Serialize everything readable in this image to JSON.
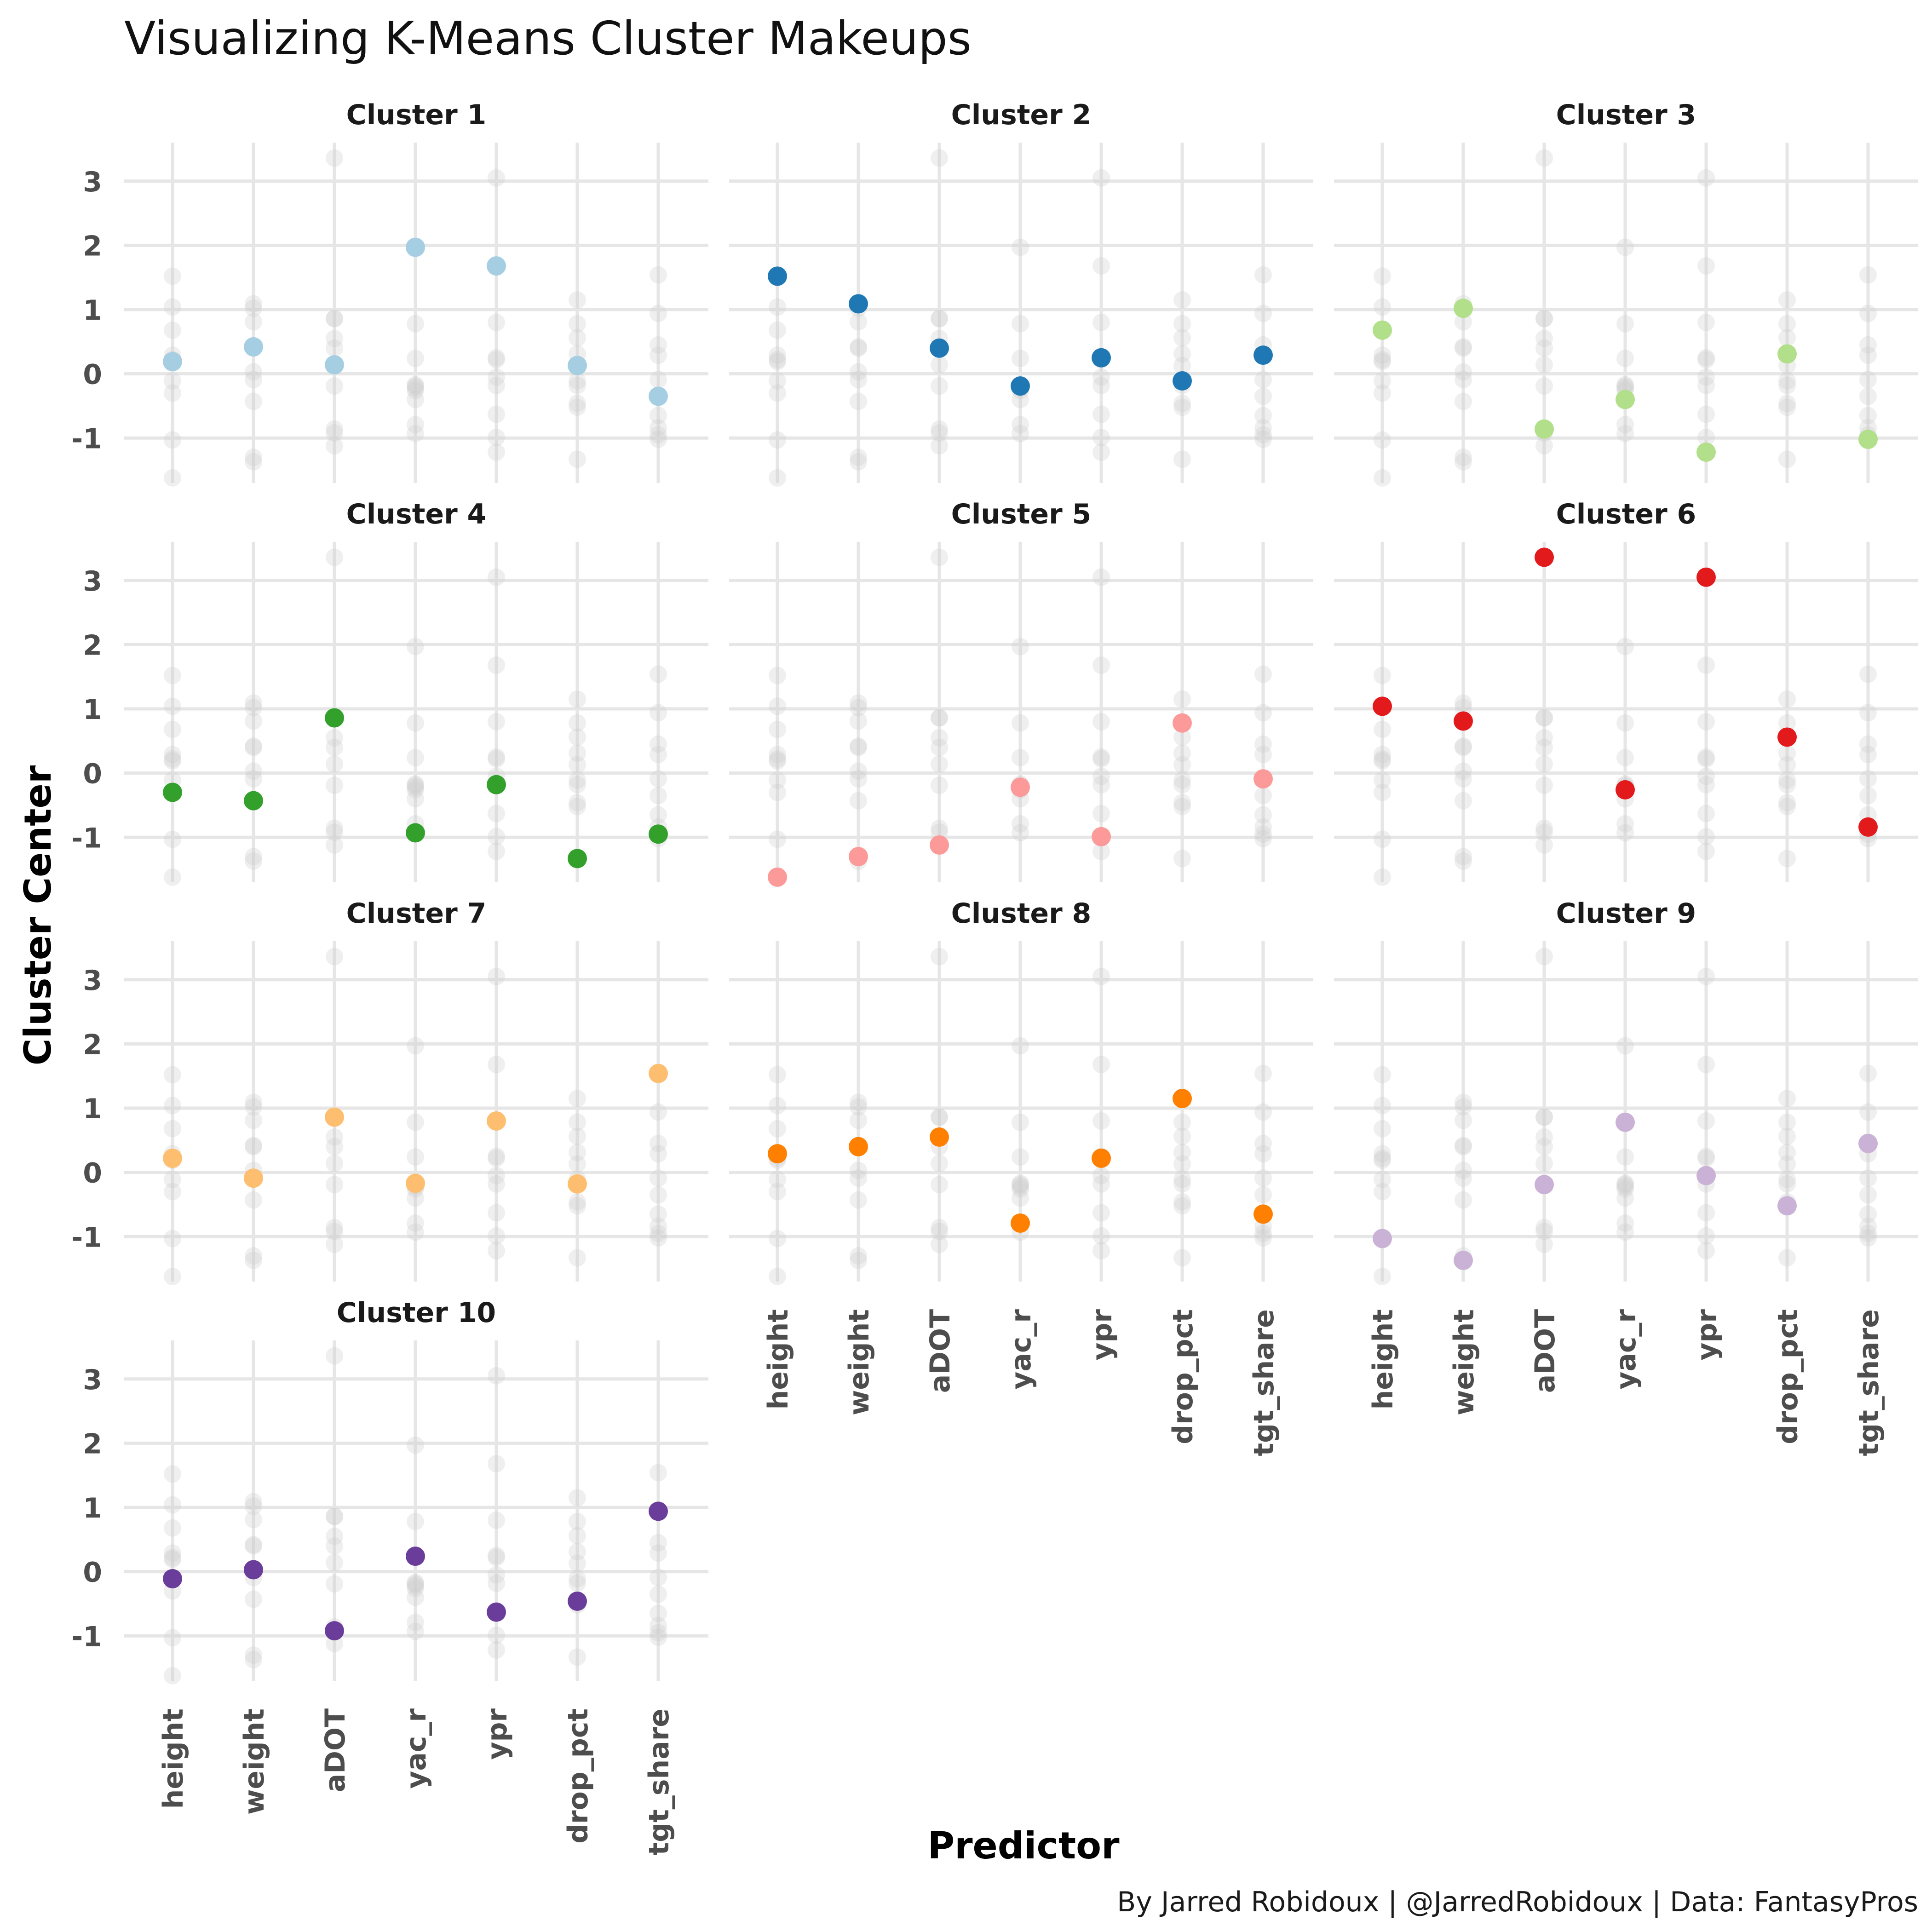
{
  "chart_data": {
    "type": "scatter",
    "title": "Visualizing K-Means Cluster Makeups",
    "xlabel": "Predictor",
    "ylabel": "Cluster Center",
    "caption": "By Jarred Robidoux | @JarredRobidoux | Data: FantasyPros",
    "categories": [
      "height",
      "weight",
      "aDOT",
      "yac_r",
      "ypr",
      "drop_pct",
      "tgt_share"
    ],
    "y_ticks": [
      3,
      2,
      1,
      0,
      -1
    ],
    "y_tick_labels": [
      "3",
      "2",
      "1",
      "0",
      "-1"
    ],
    "ylim": [
      -1.7,
      3.6
    ],
    "grid": true,
    "legend": "none",
    "background_points_color": "#cccccc",
    "series": [
      {
        "name": "Cluster 1",
        "color": "#a6cee3",
        "values": [
          0.19,
          0.42,
          0.14,
          1.97,
          1.68,
          0.13,
          -0.35
        ]
      },
      {
        "name": "Cluster 2",
        "color": "#1f78b4",
        "values": [
          1.52,
          1.09,
          0.4,
          -0.19,
          0.25,
          -0.11,
          0.29
        ]
      },
      {
        "name": "Cluster 3",
        "color": "#b2df8a",
        "values": [
          0.68,
          1.02,
          -0.86,
          -0.4,
          -1.22,
          0.31,
          -1.02
        ]
      },
      {
        "name": "Cluster 4",
        "color": "#33a02c",
        "values": [
          -0.3,
          -0.43,
          0.86,
          -0.93,
          -0.18,
          -1.33,
          -0.95
        ]
      },
      {
        "name": "Cluster 5",
        "color": "#fb9a99",
        "values": [
          -1.62,
          -1.3,
          -1.12,
          -0.22,
          -0.99,
          0.78,
          -0.09
        ]
      },
      {
        "name": "Cluster 6",
        "color": "#e31a1c",
        "values": [
          1.04,
          0.81,
          3.36,
          -0.26,
          3.05,
          0.56,
          -0.84
        ]
      },
      {
        "name": "Cluster 7",
        "color": "#fdbf6f",
        "values": [
          0.22,
          -0.09,
          0.86,
          -0.17,
          0.8,
          -0.18,
          1.54
        ]
      },
      {
        "name": "Cluster 8",
        "color": "#ff7f00",
        "values": [
          0.29,
          0.4,
          0.55,
          -0.79,
          0.22,
          1.15,
          -0.65
        ]
      },
      {
        "name": "Cluster 9",
        "color": "#cab2d6",
        "values": [
          -1.03,
          -1.37,
          -0.19,
          0.78,
          -0.05,
          -0.52,
          0.45
        ]
      },
      {
        "name": "Cluster 10",
        "color": "#6a3d9a",
        "values": [
          -0.11,
          0.03,
          -0.92,
          0.24,
          -0.63,
          -0.46,
          0.94
        ]
      }
    ]
  }
}
